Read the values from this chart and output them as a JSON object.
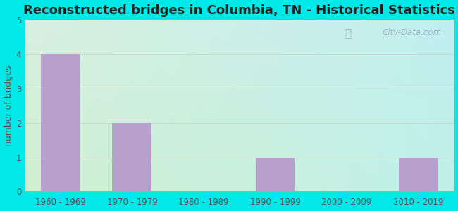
{
  "title": "Reconstructed bridges in Columbia, TN - Historical Statistics",
  "categories": [
    "1960 - 1969",
    "1970 - 1979",
    "1980 - 1989",
    "1990 - 1999",
    "2000 - 2009",
    "2010 - 2019"
  ],
  "values": [
    4,
    2,
    0,
    1,
    0,
    1
  ],
  "bar_color": "#b8a0cc",
  "ylabel": "number of bridges",
  "ylim": [
    0,
    5
  ],
  "yticks": [
    0,
    1,
    2,
    3,
    4,
    5
  ],
  "background_outer": "#00e8e8",
  "bg_top_left": "#d8f0e0",
  "bg_top_right": "#c8eef0",
  "bg_bottom_left": "#d8f0d8",
  "bg_bottom_right": "#c0eee8",
  "title_fontsize": 13,
  "ylabel_fontsize": 9,
  "tick_fontsize": 8.5,
  "watermark": "City-Data.com",
  "grid_color": "#c8dcc8",
  "title_color": "#222222",
  "axis_label_color": "#555555",
  "tick_color": "#555555"
}
